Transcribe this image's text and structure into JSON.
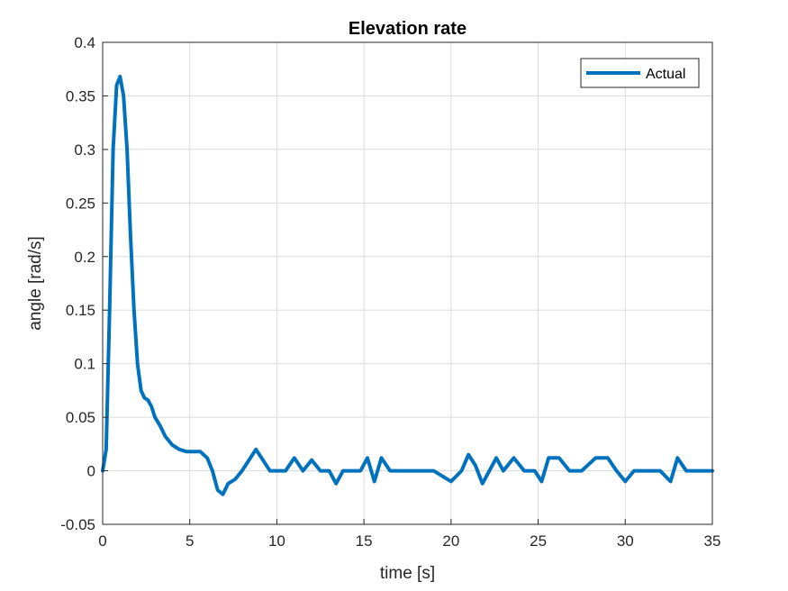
{
  "chart_data": {
    "type": "line",
    "title": "Elevation rate",
    "xlabel": "time [s]",
    "ylabel": "angle [rad/s]",
    "xlim": [
      0,
      35
    ],
    "ylim": [
      -0.05,
      0.4
    ],
    "xticks": [
      0,
      5,
      10,
      15,
      20,
      25,
      30,
      35
    ],
    "yticks": [
      -0.05,
      0,
      0.05,
      0.1,
      0.15,
      0.2,
      0.25,
      0.3,
      0.35,
      0.4
    ],
    "xtick_labels": [
      "0",
      "5",
      "10",
      "15",
      "20",
      "25",
      "30",
      "35"
    ],
    "ytick_labels": [
      "-0.05",
      "0",
      "0.05",
      "0.1",
      "0.15",
      "0.2",
      "0.25",
      "0.3",
      "0.35",
      "0.4"
    ],
    "grid": true,
    "legend": {
      "position": "top-right",
      "entries": [
        "Actual"
      ]
    },
    "series": [
      {
        "name": "Actual",
        "color": "#0072BD",
        "x": [
          0,
          0.2,
          0.4,
          0.6,
          0.8,
          1.0,
          1.2,
          1.4,
          1.6,
          1.8,
          2.0,
          2.2,
          2.4,
          2.6,
          2.8,
          3.0,
          3.3,
          3.6,
          4.0,
          4.4,
          4.8,
          5.2,
          5.6,
          6.0,
          6.3,
          6.6,
          6.9,
          7.2,
          7.6,
          8.0,
          8.4,
          8.8,
          9.2,
          9.6,
          10.0,
          10.5,
          11.0,
          11.5,
          12.0,
          12.5,
          13.0,
          13.4,
          13.8,
          14.2,
          14.8,
          15.2,
          15.6,
          16.0,
          16.5,
          17.0,
          18.0,
          19.0,
          20.0,
          20.6,
          21.0,
          21.4,
          21.8,
          22.2,
          22.6,
          23.0,
          23.6,
          24.2,
          24.8,
          25.2,
          25.6,
          26.2,
          26.8,
          27.5,
          28.3,
          29.0,
          29.5,
          30.0,
          30.5,
          31.0,
          32.0,
          32.6,
          33.0,
          33.5,
          34.0,
          35.0
        ],
        "y": [
          0,
          0.02,
          0.15,
          0.3,
          0.36,
          0.368,
          0.35,
          0.3,
          0.22,
          0.15,
          0.1,
          0.075,
          0.068,
          0.066,
          0.06,
          0.05,
          0.042,
          0.032,
          0.024,
          0.02,
          0.018,
          0.018,
          0.018,
          0.012,
          0.0,
          -0.018,
          -0.022,
          -0.012,
          -0.008,
          0.0,
          0.01,
          0.02,
          0.01,
          0.0,
          0.0,
          0.0,
          0.012,
          0.0,
          0.01,
          0.0,
          0.0,
          -0.012,
          0.0,
          0.0,
          0.0,
          0.012,
          -0.01,
          0.012,
          0.0,
          0.0,
          0.0,
          0.0,
          -0.01,
          0.0,
          0.015,
          0.005,
          -0.012,
          0.0,
          0.012,
          0.0,
          0.012,
          0.0,
          0.0,
          -0.01,
          0.012,
          0.012,
          0.0,
          0.0,
          0.012,
          0.012,
          0.0,
          -0.01,
          0.0,
          0.0,
          0.0,
          -0.01,
          0.012,
          0.0,
          0.0,
          0.0
        ]
      }
    ]
  }
}
